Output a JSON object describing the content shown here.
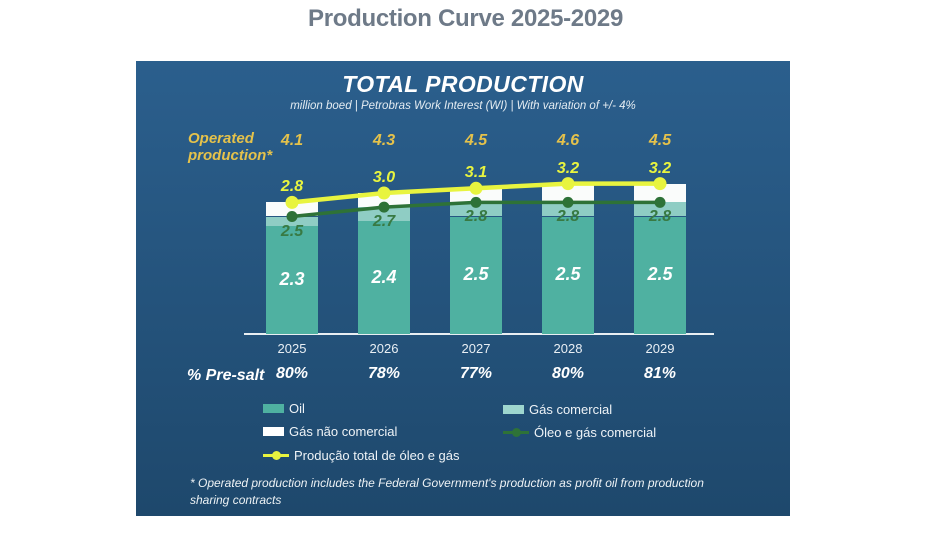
{
  "header": {
    "title": "Production Curve 2025-2029"
  },
  "panel": {
    "title": "TOTAL PRODUCTION",
    "subtitle": "million boed | Petrobras Work Interest (WI) | With variation of +/- 4%",
    "operated_label": "Operated\nproduction*",
    "footnote": "* Operated production includes the Federal Government's production as profit oil from production sharing contracts"
  },
  "legend": {
    "items": [
      {
        "label": "Oil",
        "swatch": "rect",
        "color": "#4fb1a1"
      },
      {
        "label": "Gás não comercial",
        "swatch": "rect",
        "color": "#ffffff"
      },
      {
        "label": "Produção total de óleo e gás",
        "swatch": "line-dot",
        "color": "#e8f43f"
      },
      {
        "label": "Gás comercial",
        "swatch": "rect",
        "color": "#9ed6ce"
      },
      {
        "label": "Óleo e gás comercial",
        "swatch": "line-dot",
        "color": "#2e7237"
      }
    ]
  },
  "chart_data": {
    "type": "bar",
    "title": "TOTAL PRODUCTION",
    "ylabel": "million boed",
    "ylim": [
      0,
      3.4
    ],
    "grid": false,
    "legend_position": "bottom",
    "categories": [
      "2025",
      "2026",
      "2027",
      "2028",
      "2029"
    ],
    "series": [
      {
        "name": "Operated production",
        "role": "label-row",
        "values": [
          4.1,
          4.3,
          4.5,
          4.6,
          4.5
        ]
      },
      {
        "name": "Produção total de óleo e gás",
        "role": "line",
        "values": [
          2.8,
          3.0,
          3.1,
          3.2,
          3.2
        ]
      },
      {
        "name": "Óleo e gás comercial",
        "role": "line",
        "values": [
          2.5,
          2.7,
          2.8,
          2.8,
          2.8
        ]
      },
      {
        "name": "Oil",
        "role": "bar-stack-base",
        "values": [
          2.3,
          2.4,
          2.5,
          2.5,
          2.5
        ]
      }
    ],
    "stacking_note": "bars stacked: Oil, then Gás comercial up to 'Óleo e gás comercial' line, then Gás não comercial up to total line",
    "presalt_row": {
      "label": "% Pre-salt",
      "values": [
        "80%",
        "78%",
        "77%",
        "80%",
        "81%"
      ]
    }
  },
  "colors": {
    "panel_top": "#2b5f8d",
    "panel_bottom": "#1e486c",
    "bar_oil": "#4fb1a1",
    "bar_gas_comercial": "#8fcdc4",
    "bar_gas_nao_comercial": "#fafcfb",
    "line_total": "#e8f43f",
    "line_oil_gas": "#2e7237",
    "value_gold": "#e5c24b",
    "value_green": "#387a43",
    "page_title": "#6e7a88",
    "axis_line": "#e9eef2"
  }
}
